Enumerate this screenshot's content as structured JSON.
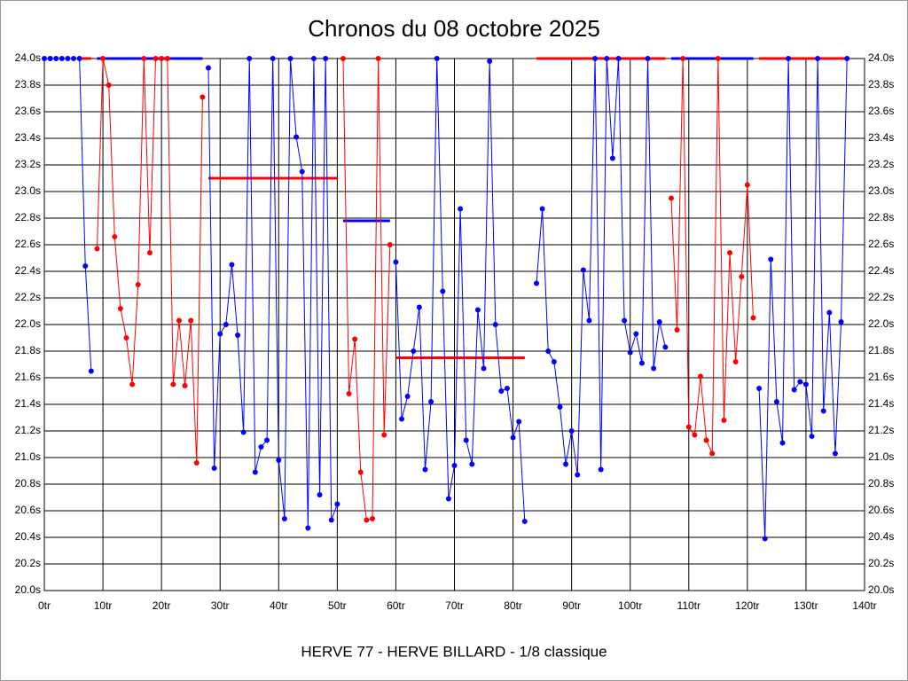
{
  "chart_data": {
    "type": "line",
    "title": "Chronos du 08 octobre 2025",
    "footer": "HERVE 77 - HERVE BILLARD - 1/8 classique",
    "grid": true,
    "xlim": [
      0,
      140
    ],
    "xticks": [
      {
        "value": 0,
        "label": "0tr"
      },
      {
        "value": 10,
        "label": "10tr"
      },
      {
        "value": 20,
        "label": "20tr"
      },
      {
        "value": 30,
        "label": "30tr"
      },
      {
        "value": 40,
        "label": "40tr"
      },
      {
        "value": 50,
        "label": "50tr"
      },
      {
        "value": 60,
        "label": "60tr"
      },
      {
        "value": 70,
        "label": "70tr"
      },
      {
        "value": 80,
        "label": "80tr"
      },
      {
        "value": 90,
        "label": "90tr"
      },
      {
        "value": 100,
        "label": "100tr"
      },
      {
        "value": 110,
        "label": "110tr"
      },
      {
        "value": 120,
        "label": "120tr"
      },
      {
        "value": 130,
        "label": "130tr"
      },
      {
        "value": 140,
        "label": "140tr"
      }
    ],
    "ylim": [
      20,
      24
    ],
    "yticks": [
      {
        "value": 20,
        "label": "20.0s"
      },
      {
        "value": 20.2,
        "label": "20.2s"
      },
      {
        "value": 20.4,
        "label": "20.4s"
      },
      {
        "value": 20.6,
        "label": "20.6s"
      },
      {
        "value": 20.8,
        "label": "20.8s"
      },
      {
        "value": 21,
        "label": "21.0s"
      },
      {
        "value": 21.2,
        "label": "21.2s"
      },
      {
        "value": 21.4,
        "label": "21.4s"
      },
      {
        "value": 21.6,
        "label": "21.6s"
      },
      {
        "value": 21.8,
        "label": "21.8s"
      },
      {
        "value": 22,
        "label": "22.0s"
      },
      {
        "value": 22.2,
        "label": "22.2s"
      },
      {
        "value": 22.4,
        "label": "22.4s"
      },
      {
        "value": 22.6,
        "label": "22.6s"
      },
      {
        "value": 22.8,
        "label": "22.8s"
      },
      {
        "value": 23,
        "label": "23.0s"
      },
      {
        "value": 23.2,
        "label": "23.2s"
      },
      {
        "value": 23.4,
        "label": "23.4s"
      },
      {
        "value": 23.6,
        "label": "23.6s"
      },
      {
        "value": 23.8,
        "label": "23.8s"
      },
      {
        "value": 24,
        "label": "24.0s"
      }
    ],
    "x": [
      0,
      1,
      2,
      3,
      4,
      5,
      6,
      7,
      8,
      9,
      10,
      11,
      12,
      13,
      14,
      15,
      16,
      17,
      18,
      19,
      20,
      21,
      22,
      23,
      24,
      25,
      26,
      27,
      28,
      29,
      30,
      31,
      32,
      33,
      34,
      35,
      36,
      37,
      38,
      39,
      40,
      41,
      42,
      43,
      44,
      45,
      46,
      47,
      48,
      49,
      50,
      51,
      52,
      53,
      54,
      55,
      56,
      57,
      58,
      59,
      60,
      61,
      62,
      63,
      64,
      65,
      66,
      67,
      68,
      69,
      70,
      71,
      72,
      73,
      74,
      75,
      76,
      77,
      78,
      79,
      80,
      81,
      82,
      83,
      84,
      85,
      86,
      87,
      88,
      89,
      90,
      91,
      92,
      93,
      94,
      95,
      96,
      97,
      98,
      99,
      100,
      101,
      102,
      103,
      104,
      105,
      106,
      107,
      108,
      109,
      110,
      111,
      112,
      113,
      114,
      115,
      116,
      117,
      118,
      119,
      120,
      121,
      122,
      123,
      124,
      125,
      126,
      127,
      128,
      129,
      130,
      131,
      132,
      133,
      134,
      135,
      136,
      137
    ],
    "series": [
      {
        "color": "#0000ff",
        "values": [
          24,
          24,
          24,
          24,
          24,
          24,
          24,
          22.44,
          21.65,
          null,
          null,
          null,
          null,
          null,
          null,
          null,
          null,
          null,
          null,
          null,
          null,
          null,
          null,
          null,
          null,
          null,
          null,
          null,
          23.93,
          20.92,
          21.93,
          22.0,
          22.45,
          21.92,
          21.19,
          24,
          20.89,
          21.08,
          21.13,
          24,
          20.98,
          20.54,
          24,
          23.41,
          23.15,
          20.47,
          24,
          20.72,
          24,
          20.53,
          20.65,
          null,
          null,
          null,
          null,
          null,
          null,
          null,
          null,
          null,
          22.47,
          21.29,
          21.46,
          21.8,
          22.13,
          20.91,
          21.42,
          24,
          22.25,
          20.69,
          20.94,
          22.87,
          21.13,
          20.95,
          22.11,
          21.67,
          23.98,
          22.0,
          21.5,
          21.52,
          21.15,
          21.27,
          20.52,
          null,
          22.31,
          22.87,
          21.8,
          21.72,
          21.38,
          20.95,
          21.2,
          20.87,
          22.41,
          22.03,
          24,
          20.91,
          24,
          23.25,
          24,
          22.03,
          21.79,
          21.93,
          21.71,
          24,
          21.67,
          22.02,
          21.83,
          null,
          null,
          null,
          null,
          null,
          null,
          null,
          null,
          null,
          null,
          null,
          null,
          null,
          null,
          null,
          21.52,
          20.39,
          22.49,
          21.42,
          21.11,
          24,
          21.51,
          21.57,
          21.55,
          21.16,
          24,
          21.35,
          22.09,
          21.03,
          22.02,
          24
        ]
      },
      {
        "color": "#ff0000",
        "values": [
          null,
          null,
          null,
          null,
          null,
          null,
          null,
          null,
          null,
          22.57,
          24,
          23.8,
          22.66,
          22.12,
          21.9,
          21.55,
          22.3,
          24,
          22.54,
          24,
          24,
          24,
          21.55,
          22.03,
          21.54,
          22.03,
          20.96,
          23.71,
          null,
          null,
          null,
          null,
          null,
          null,
          null,
          null,
          null,
          null,
          null,
          null,
          null,
          null,
          null,
          null,
          null,
          null,
          null,
          null,
          null,
          null,
          null,
          24,
          21.48,
          21.89,
          20.89,
          20.53,
          20.54,
          24,
          21.17,
          22.6,
          null,
          null,
          null,
          null,
          null,
          null,
          null,
          null,
          null,
          null,
          null,
          null,
          null,
          null,
          null,
          null,
          null,
          null,
          null,
          null,
          null,
          null,
          null,
          null,
          null,
          null,
          null,
          null,
          null,
          null,
          null,
          null,
          null,
          null,
          null,
          null,
          null,
          null,
          null,
          null,
          null,
          null,
          null,
          null,
          null,
          null,
          null,
          22.95,
          21.96,
          24,
          21.23,
          21.17,
          21.61,
          21.13,
          21.03,
          24,
          21.28,
          22.54,
          21.72,
          22.36,
          23.05,
          22.05,
          null,
          null,
          null,
          null,
          null,
          null,
          null,
          null,
          null,
          null,
          null,
          null,
          null,
          null,
          null,
          null
        ]
      }
    ],
    "averages": [
      {
        "color": "#ff0000",
        "x": [
          6,
          8
        ],
        "value": 24
      },
      {
        "color": "#0000ff",
        "x": [
          9,
          27
        ],
        "value": 24
      },
      {
        "color": "#ff0000",
        "x": [
          28,
          50
        ],
        "value": 23.1
      },
      {
        "color": "#0000ff",
        "x": [
          51,
          59
        ],
        "value": 22.78
      },
      {
        "color": "#ff0000",
        "x": [
          60,
          82
        ],
        "value": 21.75
      },
      {
        "color": "#ff0000",
        "x": [
          84,
          106
        ],
        "value": 24
      },
      {
        "color": "#0000ff",
        "x": [
          107,
          121
        ],
        "value": 24
      },
      {
        "color": "#ff0000",
        "x": [
          122,
          137
        ],
        "value": 24
      }
    ]
  }
}
